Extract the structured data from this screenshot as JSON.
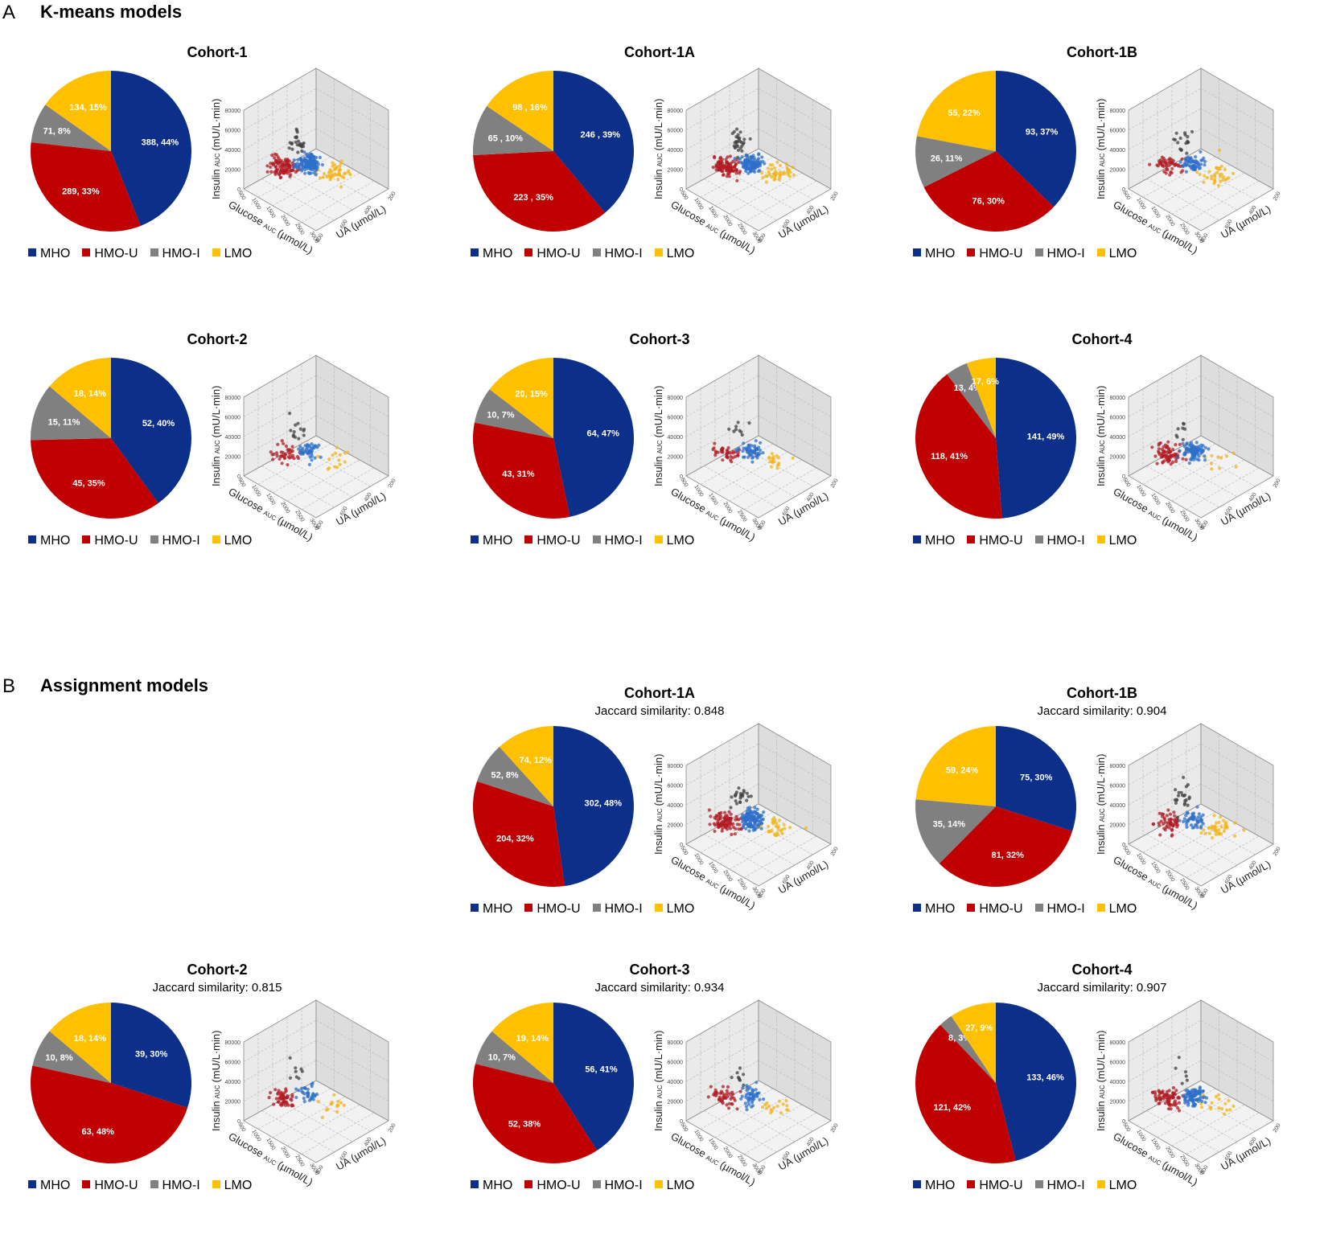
{
  "colors": {
    "MHO": "#0c2f8a",
    "HMO-U": "#c00000",
    "HMO-I": "#808080",
    "LMO": "#ffc000"
  },
  "legend": [
    "MHO",
    "HMO-U",
    "HMO-I",
    "LMO"
  ],
  "axes": {
    "z_label": "Insulin",
    "z_sub": "AUC",
    "z_unit": "(mU/L·min)",
    "x_label": "Glucose",
    "x_sub": "AUC",
    "x_unit": "(µmol/L)",
    "y_label": "UA",
    "y_unit": "(µmol/L)",
    "z_ticks": [
      "0",
      "20000",
      "40000",
      "60000",
      "80000"
    ],
    "x_ticks": [
      "500",
      "1000",
      "1500",
      "2000",
      "2500",
      "3000"
    ],
    "y_ticks": [
      "800",
      "600",
      "400",
      "200"
    ]
  },
  "section_a": {
    "letter": "A",
    "title": "K-means models"
  },
  "section_b": {
    "letter": "B",
    "title": "Assignment models"
  },
  "chart_data": [
    {
      "type": "pie",
      "model": "K-means",
      "title": "Cohort-1",
      "subtitle": "",
      "labels": [
        "MHO",
        "HMO-U",
        "HMO-I",
        "LMO"
      ],
      "values": [
        388,
        289,
        71,
        134
      ],
      "slice_labels": [
        "388, 44%",
        "289, 33%",
        "71, 8%",
        "134, 15%"
      ],
      "n_points": 300
    },
    {
      "type": "pie",
      "model": "K-means",
      "title": "Cohort-1A",
      "subtitle": "",
      "labels": [
        "MHO",
        "HMO-U",
        "HMO-I",
        "LMO"
      ],
      "values": [
        246,
        223,
        65,
        98
      ],
      "slice_labels": [
        "246 , 39%",
        "223 , 35%",
        "65 , 10%",
        "98 , 16%"
      ],
      "n_points": 280
    },
    {
      "type": "pie",
      "model": "K-means",
      "title": "Cohort-1B",
      "subtitle": "",
      "labels": [
        "MHO",
        "HMO-U",
        "HMO-I",
        "LMO"
      ],
      "values": [
        93,
        76,
        26,
        55
      ],
      "slice_labels": [
        "93, 37%",
        "76, 30%",
        "26, 11%",
        "55, 22%"
      ],
      "n_points": 160
    },
    {
      "type": "pie",
      "model": "K-means",
      "title": "Cohort-2",
      "subtitle": "",
      "labels": [
        "MHO",
        "HMO-U",
        "HMO-I",
        "LMO"
      ],
      "values": [
        52,
        45,
        15,
        18
      ],
      "slice_labels": [
        "52, 40%",
        "45, 35%",
        "15, 11%",
        "18, 14%"
      ],
      "n_points": 110
    },
    {
      "type": "pie",
      "model": "K-means",
      "title": "Cohort-3",
      "subtitle": "",
      "labels": [
        "MHO",
        "HMO-U",
        "HMO-I",
        "LMO"
      ],
      "values": [
        64,
        43,
        10,
        20
      ],
      "slice_labels": [
        "64, 47%",
        "43, 31%",
        "10, 7%",
        "20, 15%"
      ],
      "n_points": 120
    },
    {
      "type": "pie",
      "model": "K-means",
      "title": "Cohort-4",
      "subtitle": "",
      "labels": [
        "MHO",
        "HMO-U",
        "HMO-I",
        "LMO"
      ],
      "values": [
        141,
        118,
        13,
        17
      ],
      "slice_labels": [
        "141, 49%",
        "118, 41%",
        "13, 4%",
        "17, 6%"
      ],
      "n_points": 180
    },
    {
      "type": "pie",
      "model": "Assignment",
      "title": "Cohort-1A",
      "subtitle": "Jaccard similarity: 0.848",
      "labels": [
        "MHO",
        "HMO-U",
        "HMO-I",
        "LMO"
      ],
      "values": [
        302,
        204,
        52,
        74
      ],
      "slice_labels": [
        "302, 48%",
        "204, 32%",
        "52, 8%",
        "74, 12%"
      ],
      "n_points": 280
    },
    {
      "type": "pie",
      "model": "Assignment",
      "title": "Cohort-1B",
      "subtitle": "Jaccard similarity: 0.904",
      "labels": [
        "MHO",
        "HMO-U",
        "HMO-I",
        "LMO"
      ],
      "values": [
        75,
        81,
        35,
        59
      ],
      "slice_labels": [
        "75, 30%",
        "81, 32%",
        "35, 14%",
        "59, 24%"
      ],
      "n_points": 160
    },
    {
      "type": "pie",
      "model": "Assignment",
      "title": "Cohort-2",
      "subtitle": "Jaccard similarity: 0.815",
      "labels": [
        "MHO",
        "HMO-U",
        "HMO-I",
        "LMO"
      ],
      "values": [
        39,
        63,
        10,
        18
      ],
      "slice_labels": [
        "39, 30%",
        "63, 48%",
        "10, 8%",
        "18, 14%"
      ],
      "n_points": 110
    },
    {
      "type": "pie",
      "model": "Assignment",
      "title": "Cohort-3",
      "subtitle": "Jaccard similarity: 0.934",
      "labels": [
        "MHO",
        "HMO-U",
        "HMO-I",
        "LMO"
      ],
      "values": [
        56,
        52,
        10,
        19
      ],
      "slice_labels": [
        "56, 41%",
        "52, 38%",
        "10, 7%",
        "19, 14%"
      ],
      "n_points": 120
    },
    {
      "type": "pie",
      "model": "Assignment",
      "title": "Cohort-4",
      "subtitle": "Jaccard similarity: 0.907",
      "labels": [
        "MHO",
        "HMO-U",
        "HMO-I",
        "LMO"
      ],
      "values": [
        133,
        121,
        8,
        27
      ],
      "slice_labels": [
        "133, 46%",
        "121, 42%",
        "8, 3%",
        "27, 9%"
      ],
      "n_points": 180
    }
  ]
}
